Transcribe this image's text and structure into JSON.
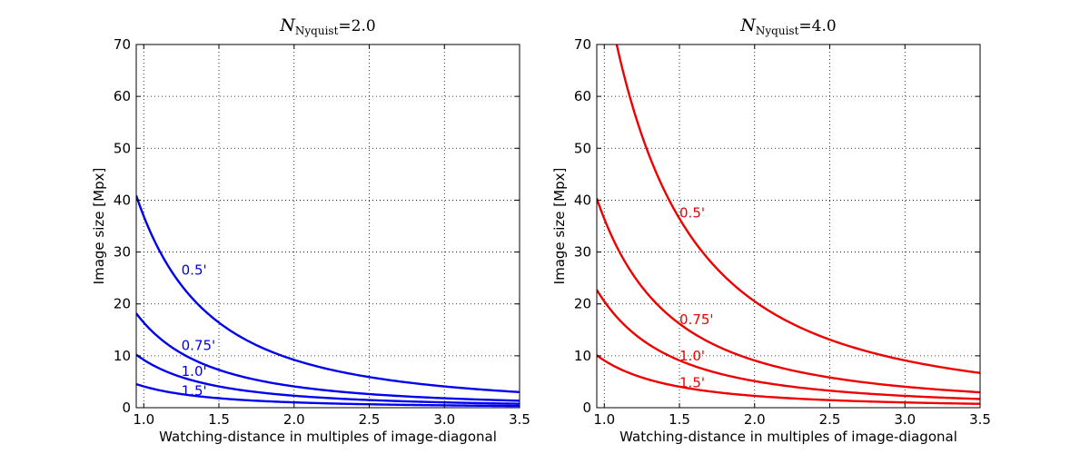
{
  "chart_data": [
    {
      "type": "line",
      "title": {
        "symbol": "N",
        "subscript": "Nyquist",
        "equals": "=",
        "value": "2.0"
      },
      "xlabel": "Watching-distance in multiples of image-diagonal",
      "ylabel": "Image size [Mpx]",
      "xlim": [
        0.95,
        3.5
      ],
      "ylim": [
        0,
        70
      ],
      "xticks": [
        "1.0",
        "1.5",
        "2.0",
        "2.5",
        "3.0",
        "3.5"
      ],
      "xtick_values": [
        1.0,
        1.5,
        2.0,
        2.5,
        3.0,
        3.5
      ],
      "yticks": [
        "0",
        "10",
        "20",
        "30",
        "40",
        "50",
        "60",
        "70"
      ],
      "ytick_values": [
        0,
        10,
        20,
        30,
        40,
        50,
        60,
        70
      ],
      "grid": true,
      "color": "#0000ee",
      "series": [
        {
          "name": "0.5'",
          "label_x": 1.25,
          "label_y": 26.5,
          "a": 36.9
        },
        {
          "name": "0.75'",
          "label_x": 1.25,
          "label_y": 12.0,
          "a": 16.4
        },
        {
          "name": "1.0'",
          "label_x": 1.25,
          "label_y": 7.0,
          "a": 9.22
        },
        {
          "name": "1.5'",
          "label_x": 1.25,
          "label_y": 3.2,
          "a": 4.1
        }
      ]
    },
    {
      "type": "line",
      "title": {
        "symbol": "N",
        "subscript": "Nyquist",
        "equals": "=",
        "value": "4.0"
      },
      "xlabel": "Watching-distance in multiples of image-diagonal",
      "ylabel": "Image size [Mpx]",
      "xlim": [
        0.95,
        3.5
      ],
      "ylim": [
        0,
        70
      ],
      "xticks": [
        "1.0",
        "1.5",
        "2.0",
        "2.5",
        "3.0",
        "3.5"
      ],
      "xtick_values": [
        1.0,
        1.5,
        2.0,
        2.5,
        3.0,
        3.5
      ],
      "yticks": [
        "0",
        "10",
        "20",
        "30",
        "40",
        "50",
        "60",
        "70"
      ],
      "ytick_values": [
        0,
        10,
        20,
        30,
        40,
        50,
        60,
        70
      ],
      "grid": true,
      "color": "#ee0000",
      "series": [
        {
          "name": "0.5'",
          "label_x": 1.5,
          "label_y": 37.5,
          "a": 82.0
        },
        {
          "name": "0.75'",
          "label_x": 1.5,
          "label_y": 17.0,
          "a": 36.4
        },
        {
          "name": "1.0'",
          "label_x": 1.5,
          "label_y": 10.0,
          "a": 20.5
        },
        {
          "name": "1.5'",
          "label_x": 1.5,
          "label_y": 4.8,
          "a": 9.1
        }
      ]
    }
  ]
}
